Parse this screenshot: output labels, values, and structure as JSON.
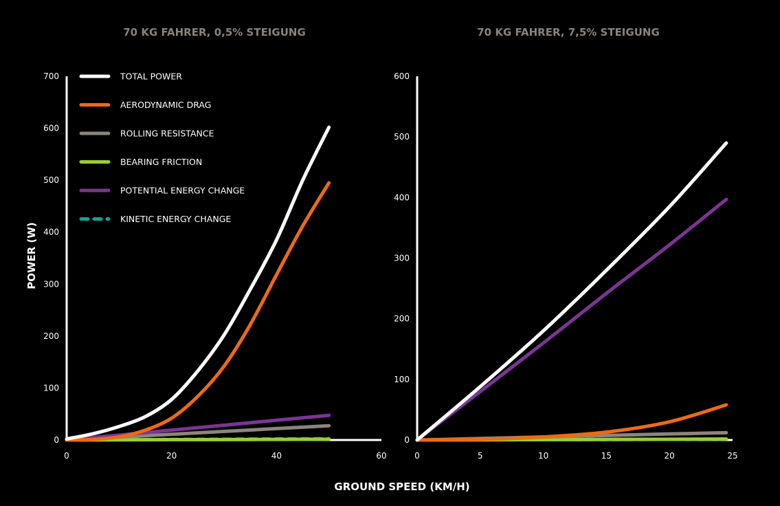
{
  "xlabel": "GROUND SPEED (KM/H)",
  "legend": [
    {
      "key": "total",
      "label": "TOTAL POWER",
      "color": "#ffffff",
      "dashed": false
    },
    {
      "key": "aero",
      "label": "AERODYNAMIC DRAG",
      "color": "#ee6a12",
      "dashed": false
    },
    {
      "key": "rolling",
      "label": "ROLLING RESISTANCE",
      "color": "#8c857c",
      "dashed": false
    },
    {
      "key": "bearing",
      "label": "BEARING FRICTION",
      "color": "#9acd32",
      "dashed": false
    },
    {
      "key": "potential",
      "label": "POTENTIAL ENERGY CHANGE",
      "color": "#7b3593",
      "dashed": false
    },
    {
      "key": "kinetic",
      "label": "KINETIC ENERGY CHANGE",
      "color": "#0fa39a",
      "dashed": true
    }
  ],
  "chart_data": [
    {
      "type": "line",
      "title": "70 KG FAHRER, 0,5% STEIGUNG",
      "xlabel": "GROUND SPEED (KM/H)",
      "ylabel": "POWER (W)",
      "xlim": [
        0,
        60
      ],
      "ylim": [
        0,
        700
      ],
      "xticks": [
        0,
        20,
        40,
        60
      ],
      "yticks": [
        0,
        100,
        200,
        300,
        400,
        500,
        600,
        700
      ],
      "legend_position": "top-left",
      "grid": false,
      "series": [
        {
          "key": "total",
          "name": "TOTAL POWER",
          "x": [
            0,
            5,
            10,
            15,
            20,
            25,
            30,
            35,
            40,
            45,
            50
          ],
          "y": [
            2,
            12,
            26,
            45,
            78,
            133,
            202,
            290,
            385,
            500,
            602
          ]
        },
        {
          "key": "aero",
          "name": "AERODYNAMIC DRAG",
          "x": [
            0,
            5,
            10,
            15,
            20,
            25,
            30,
            35,
            40,
            45,
            50
          ],
          "y": [
            0,
            1,
            6,
            19,
            42,
            84,
            142,
            222,
            318,
            412,
            495
          ]
        },
        {
          "key": "rolling",
          "name": "ROLLING RESISTANCE",
          "x": [
            0,
            10,
            20,
            30,
            40,
            50
          ],
          "y": [
            0,
            5.5,
            11,
            16.5,
            22,
            27.5
          ]
        },
        {
          "key": "bearing",
          "name": "BEARING FRICTION",
          "x": [
            0,
            10,
            20,
            30,
            40,
            50
          ],
          "y": [
            0,
            0.3,
            0.6,
            0.9,
            1.2,
            1.5
          ]
        },
        {
          "key": "potential",
          "name": "POTENTIAL ENERGY CHANGE",
          "x": [
            0,
            10,
            20,
            30,
            40,
            50
          ],
          "y": [
            0,
            9.5,
            19,
            28.5,
            38,
            47.5
          ]
        },
        {
          "key": "kinetic",
          "name": "KINETIC ENERGY CHANGE",
          "x": [
            0,
            10,
            20,
            30,
            40,
            50
          ],
          "y": [
            0,
            0.5,
            1,
            1.5,
            2,
            2.5
          ]
        }
      ]
    },
    {
      "type": "line",
      "title": "70 KG FAHRER, 7,5% STEIGUNG",
      "xlabel": "GROUND SPEED (KM/H)",
      "ylabel": "",
      "xlim": [
        0,
        25
      ],
      "ylim": [
        0,
        600
      ],
      "xticks": [
        0,
        5,
        10,
        15,
        20,
        25
      ],
      "yticks": [
        0,
        100,
        200,
        300,
        400,
        500,
        600
      ],
      "grid": false,
      "series": [
        {
          "key": "total",
          "name": "TOTAL POWER",
          "x": [
            0,
            5,
            10,
            15,
            20,
            24.5
          ],
          "y": [
            0,
            88,
            180,
            280,
            385,
            490
          ]
        },
        {
          "key": "aero",
          "name": "AERODYNAMIC DRAG",
          "x": [
            0,
            5,
            10,
            15,
            20,
            24.5
          ],
          "y": [
            0,
            1,
            5,
            13,
            30,
            58
          ]
        },
        {
          "key": "rolling",
          "name": "ROLLING RESISTANCE",
          "x": [
            0,
            5,
            10,
            15,
            20,
            24.5
          ],
          "y": [
            0,
            2.5,
            5,
            7.5,
            10,
            12
          ]
        },
        {
          "key": "bearing",
          "name": "BEARING FRICTION",
          "x": [
            0,
            5,
            10,
            15,
            20,
            24.5
          ],
          "y": [
            0,
            0.3,
            0.6,
            0.9,
            1.2,
            1.5
          ]
        },
        {
          "key": "potential",
          "name": "POTENTIAL ENERGY CHANGE",
          "x": [
            0,
            5,
            10,
            15,
            20,
            24.5
          ],
          "y": [
            0,
            80,
            160,
            242,
            322,
            397
          ]
        },
        {
          "key": "kinetic",
          "name": "KINETIC ENERGY CHANGE",
          "x": [
            0,
            5,
            10,
            15,
            20,
            24.5
          ],
          "y": [
            0,
            0.3,
            0.6,
            0.9,
            1.2,
            1.5
          ]
        }
      ]
    }
  ]
}
